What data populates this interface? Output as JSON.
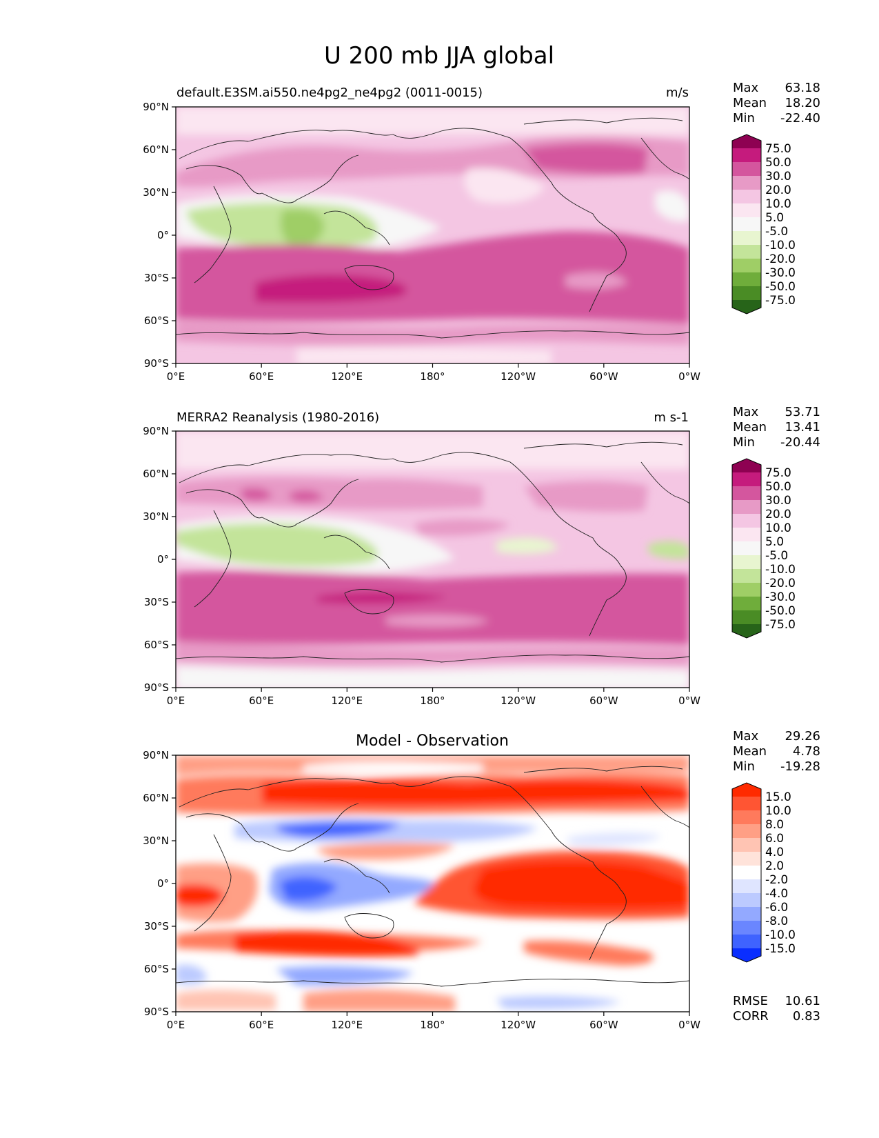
{
  "figure": {
    "title": "U 200 mb JJA global",
    "xticks": [
      "0°E",
      "60°E",
      "120°E",
      "180°",
      "120°W",
      "60°W",
      "0°W"
    ],
    "yticks": [
      "90°N",
      "60°N",
      "30°N",
      "0°",
      "30°S",
      "60°S",
      "90°S"
    ]
  },
  "panels": [
    {
      "title_left": "default.E3SM.ai550.ne4pg2_ne4pg2 (0011-0015)",
      "title_center": "",
      "units": "m/s",
      "stats": [
        [
          "Max",
          "63.18"
        ],
        [
          "Mean",
          "18.20"
        ],
        [
          "Min",
          "-22.40"
        ]
      ],
      "colorbar": {
        "labels": [
          "75.0",
          "50.0",
          "30.0",
          "20.0",
          "10.0",
          "5.0",
          "-5.0",
          "-10.0",
          "-20.0",
          "-30.0",
          "-50.0",
          "-75.0"
        ],
        "colors": [
          "#8e0152",
          "#c51b7d",
          "#d4569e",
          "#e79ac6",
          "#f4c6e3",
          "#fbe6f1",
          "#f7f7f7",
          "#e8f5d0",
          "#c3e49a",
          "#9fce66",
          "#6fad3b",
          "#4a8c25",
          "#276419"
        ]
      }
    },
    {
      "title_left": "MERRA2 Reanalysis (1980-2016)",
      "title_center": "",
      "units": "m s-1",
      "stats": [
        [
          "Max",
          "53.71"
        ],
        [
          "Mean",
          "13.41"
        ],
        [
          "Min",
          "-20.44"
        ]
      ],
      "colorbar": {
        "labels": [
          "75.0",
          "50.0",
          "30.0",
          "20.0",
          "10.0",
          "5.0",
          "-5.0",
          "-10.0",
          "-20.0",
          "-30.0",
          "-50.0",
          "-75.0"
        ],
        "colors": [
          "#8e0152",
          "#c51b7d",
          "#d4569e",
          "#e79ac6",
          "#f4c6e3",
          "#fbe6f1",
          "#f7f7f7",
          "#e8f5d0",
          "#c3e49a",
          "#9fce66",
          "#6fad3b",
          "#4a8c25",
          "#276419"
        ]
      }
    },
    {
      "title_left": "",
      "title_center": "Model - Observation",
      "units": "",
      "stats": [
        [
          "Max",
          "29.26"
        ],
        [
          "Mean",
          "4.78"
        ],
        [
          "Min",
          "-19.28"
        ]
      ],
      "colorbar": {
        "labels": [
          "15.0",
          "10.0",
          "8.0",
          "6.0",
          "4.0",
          "2.0",
          "-2.0",
          "-4.0",
          "-6.0",
          "-8.0",
          "-10.0",
          "-15.0"
        ],
        "colors": [
          "#ff2a00",
          "#ff5533",
          "#ff7a5c",
          "#ff9f85",
          "#ffc4b3",
          "#ffe3da",
          "#ffffff",
          "#dfe5ff",
          "#bccaff",
          "#93a9ff",
          "#6a86ff",
          "#3f63ff",
          "#0a2eff"
        ]
      },
      "extra_stats": [
        [
          "RMSE",
          "10.61"
        ],
        [
          "CORR",
          "0.83"
        ]
      ]
    }
  ],
  "chart_data": [
    {
      "type": "heatmap",
      "title": "default.E3SM.ai550.ne4pg2_ne4pg2 (0011-0015)",
      "units": "m/s",
      "xlim": [
        0,
        360
      ],
      "ylim": [
        -90,
        90
      ],
      "xlabel": "",
      "ylabel": "",
      "bands": [
        {
          "lat_range": [
            60,
            90
          ],
          "level": 5
        },
        {
          "lat_range": [
            35,
            55
          ],
          "level": 20
        },
        {
          "lat_range": [
            0,
            20
          ],
          "level": -10
        },
        {
          "lat_range": [
            -20,
            -55
          ],
          "level": 30
        },
        {
          "lat_range": [
            -30,
            -45
          ],
          "level": 50
        },
        {
          "lat_range": [
            -60,
            -90
          ],
          "level": 5
        }
      ],
      "max": 63.18,
      "mean": 18.2,
      "min": -22.4
    },
    {
      "type": "heatmap",
      "title": "MERRA2 Reanalysis (1980-2016)",
      "units": "m s-1",
      "xlim": [
        0,
        360
      ],
      "ylim": [
        -90,
        90
      ],
      "xlabel": "",
      "ylabel": "",
      "bands": [
        {
          "lat_range": [
            60,
            90
          ],
          "level": 5
        },
        {
          "lat_range": [
            35,
            50
          ],
          "level": 20
        },
        {
          "lat_range": [
            0,
            20
          ],
          "level": -10
        },
        {
          "lat_range": [
            -20,
            -55
          ],
          "level": 30
        },
        {
          "lat_range": [
            -60,
            -90
          ],
          "level": 5
        }
      ],
      "max": 53.71,
      "mean": 13.41,
      "min": -20.44
    },
    {
      "type": "heatmap",
      "title": "Model - Observation",
      "units": "",
      "xlim": [
        0,
        360
      ],
      "ylim": [
        -90,
        90
      ],
      "xlabel": "",
      "ylabel": "",
      "bands": [
        {
          "lat_range": [
            55,
            80
          ],
          "level": 15
        },
        {
          "lat_range": [
            35,
            45
          ],
          "level": -10
        },
        {
          "lat_range": [
            -5,
            15
          ],
          "level": 15
        },
        {
          "lat_range": [
            -30,
            -45
          ],
          "level": 15
        },
        {
          "lat_range": [
            -55,
            -65
          ],
          "level": -6
        }
      ],
      "max": 29.26,
      "mean": 4.78,
      "min": -19.28,
      "rmse": 10.61,
      "corr": 0.83
    }
  ]
}
